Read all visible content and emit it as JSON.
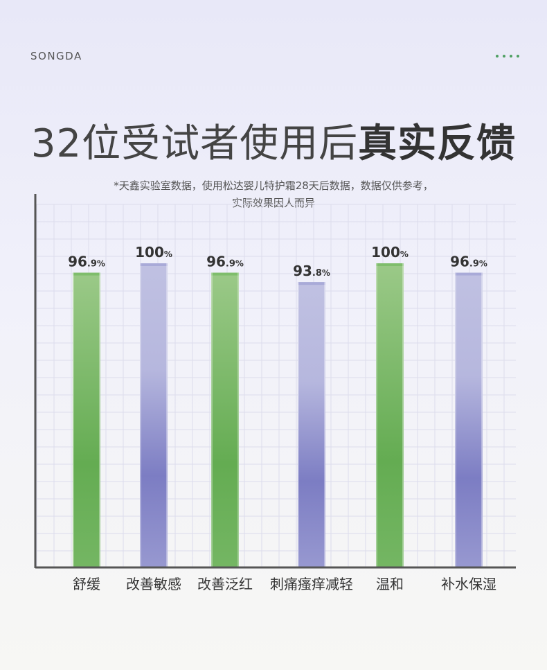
{
  "brand": "SONGDA",
  "title_light": "32位受试者使用后",
  "title_bold": "真实反馈",
  "note_line1": "*天鑫实验室数据，使用松达婴儿特护霜28天后数据，数据仅供参考，",
  "note_line2": "实际效果因人而异",
  "colors": {
    "green": "#65ad55",
    "purple": "#7b7cc2",
    "axis": "#555555"
  },
  "chart_data": {
    "type": "bar",
    "title": "",
    "xlabel": "",
    "ylabel": "",
    "ylim": [
      0,
      100
    ],
    "grid": true,
    "unit": "%",
    "categories": [
      "舒缓",
      "改善敏感",
      "改善泛红",
      "刺痛瘙痒减轻",
      "温和",
      "补水保湿"
    ],
    "values": [
      96.9,
      100,
      96.9,
      93.8,
      100,
      96.9
    ],
    "value_labels": [
      {
        "int": "96",
        "dec": ".9",
        "unit": "%"
      },
      {
        "int": "100",
        "dec": "",
        "unit": "%"
      },
      {
        "int": "96",
        "dec": ".9",
        "unit": "%"
      },
      {
        "int": "93",
        "dec": ".8",
        "unit": "%"
      },
      {
        "int": "100",
        "dec": "",
        "unit": "%"
      },
      {
        "int": "96",
        "dec": ".9",
        "unit": "%"
      }
    ],
    "bar_colors": [
      "green",
      "purple",
      "green",
      "purple",
      "green",
      "purple"
    ]
  }
}
